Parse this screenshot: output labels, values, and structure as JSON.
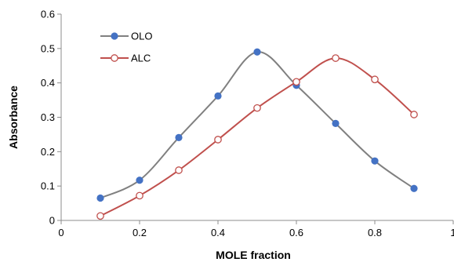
{
  "chart_data": {
    "type": "line",
    "title": "",
    "xlabel": "MOLE fraction",
    "ylabel": "Absorbance",
    "xlim": [
      0,
      1
    ],
    "ylim": [
      0,
      0.6
    ],
    "x_ticks": [
      "0",
      "0.2",
      "0.4",
      "0.6",
      "0.8",
      "1"
    ],
    "y_ticks": [
      "0",
      "0.1",
      "0.2",
      "0.3",
      "0.4",
      "0.5",
      "0.6"
    ],
    "grid": false,
    "legend_position": "top-left",
    "series": [
      {
        "name": "OLO",
        "color": "#808080",
        "marker_color": "#4472C4",
        "marker": "filled-circle",
        "x": [
          0.1,
          0.2,
          0.3,
          0.4,
          0.5,
          0.6,
          0.7,
          0.8,
          0.9
        ],
        "y": [
          0.065,
          0.117,
          0.241,
          0.362,
          0.49,
          0.393,
          0.282,
          0.173,
          0.093
        ]
      },
      {
        "name": "ALC",
        "color": "#C0504D",
        "marker_color": "#C0504D",
        "marker": "open-circle",
        "x": [
          0.1,
          0.2,
          0.3,
          0.4,
          0.5,
          0.6,
          0.7,
          0.8,
          0.9
        ],
        "y": [
          0.013,
          0.072,
          0.146,
          0.235,
          0.327,
          0.403,
          0.472,
          0.41,
          0.308
        ]
      }
    ]
  }
}
